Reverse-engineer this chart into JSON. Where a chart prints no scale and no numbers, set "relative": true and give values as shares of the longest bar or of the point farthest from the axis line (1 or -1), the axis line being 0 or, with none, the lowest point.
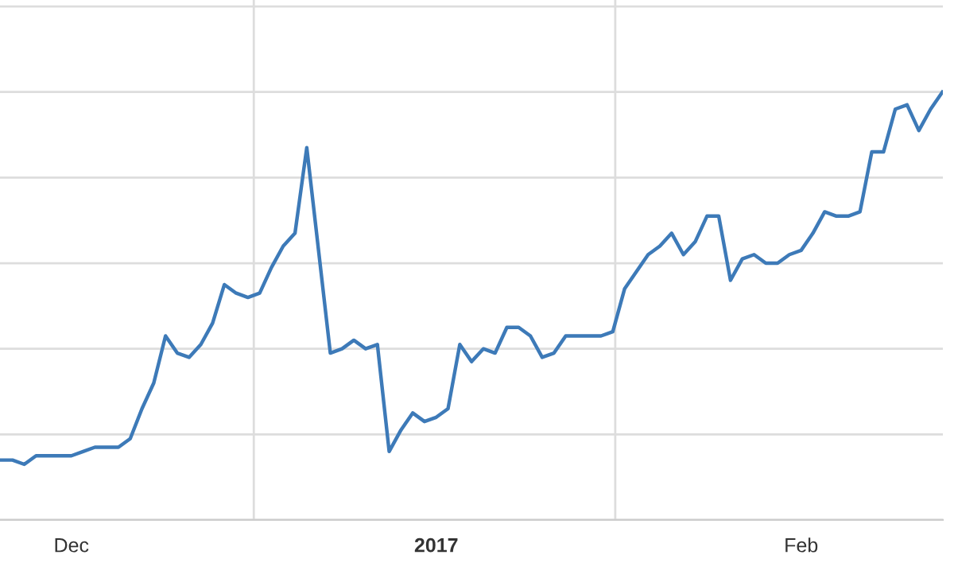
{
  "chart_data": {
    "type": "line",
    "relative": true,
    "grid": true,
    "marker": "none",
    "line_style": "solid",
    "x": [
      "2016-11-25",
      "2016-11-26",
      "2016-11-27",
      "2016-11-28",
      "2016-11-29",
      "2016-11-30",
      "2016-12-01",
      "2016-12-02",
      "2016-12-03",
      "2016-12-04",
      "2016-12-05",
      "2016-12-06",
      "2016-12-07",
      "2016-12-08",
      "2016-12-09",
      "2016-12-10",
      "2016-12-11",
      "2016-12-12",
      "2016-12-13",
      "2016-12-14",
      "2016-12-15",
      "2016-12-16",
      "2016-12-17",
      "2016-12-18",
      "2016-12-19",
      "2016-12-20",
      "2016-12-21",
      "2016-12-23",
      "2016-12-24",
      "2016-12-25",
      "2016-12-26",
      "2016-12-27",
      "2016-12-28",
      "2016-12-29",
      "2016-12-30",
      "2016-12-31",
      "2017-01-01",
      "2017-01-02",
      "2017-01-03",
      "2017-01-04",
      "2017-01-05",
      "2017-01-06",
      "2017-01-07",
      "2017-01-08",
      "2017-01-09",
      "2017-01-10",
      "2017-01-11",
      "2017-01-12",
      "2017-01-13",
      "2017-01-14",
      "2017-01-15",
      "2017-01-16",
      "2017-01-17",
      "2017-01-18",
      "2017-01-19",
      "2017-01-20",
      "2017-01-21",
      "2017-01-22",
      "2017-01-23",
      "2017-01-24",
      "2017-01-25",
      "2017-01-26",
      "2017-01-27",
      "2017-01-28",
      "2017-01-29",
      "2017-01-30",
      "2017-01-31",
      "2017-02-01",
      "2017-02-02",
      "2017-02-03",
      "2017-02-04",
      "2017-02-05",
      "2017-02-06",
      "2017-02-07",
      "2017-02-08",
      "2017-02-09",
      "2017-02-10",
      "2017-02-11",
      "2017-02-12",
      "2017-02-13"
    ],
    "series": [
      {
        "color": "#3d7ab8",
        "values": [
          0.14,
          0.14,
          0.13,
          0.15,
          0.15,
          0.15,
          0.15,
          0.16,
          0.17,
          0.17,
          0.17,
          0.19,
          0.26,
          0.32,
          0.43,
          0.39,
          0.38,
          0.41,
          0.46,
          0.55,
          0.53,
          0.52,
          0.53,
          0.59,
          0.64,
          0.67,
          0.87,
          0.39,
          0.4,
          0.42,
          0.4,
          0.41,
          0.16,
          0.21,
          0.25,
          0.23,
          0.24,
          0.26,
          0.41,
          0.37,
          0.4,
          0.39,
          0.45,
          0.45,
          0.43,
          0.38,
          0.39,
          0.43,
          0.43,
          0.43,
          0.43,
          0.44,
          0.54,
          0.58,
          0.62,
          0.64,
          0.67,
          0.62,
          0.65,
          0.71,
          0.71,
          0.56,
          0.61,
          0.62,
          0.6,
          0.6,
          0.62,
          0.63,
          0.67,
          0.72,
          0.71,
          0.71,
          0.72,
          0.86,
          0.86,
          0.96,
          0.97,
          0.91,
          0.96,
          1
        ]
      }
    ],
    "xlim": [
      "2016-11-24T22:30",
      "2017-02-13T01:00"
    ],
    "xticks": [
      {
        "value": "2016-12-01",
        "label": "Dec"
      },
      {
        "value": "2016-12-16T12:00",
        "label": null
      },
      {
        "value": "2017",
        "label": "2017"
      },
      {
        "value": "2017-01-16T05:00",
        "label": null
      },
      {
        "value": "2017-02-01",
        "label": "Feb"
      }
    ]
  }
}
